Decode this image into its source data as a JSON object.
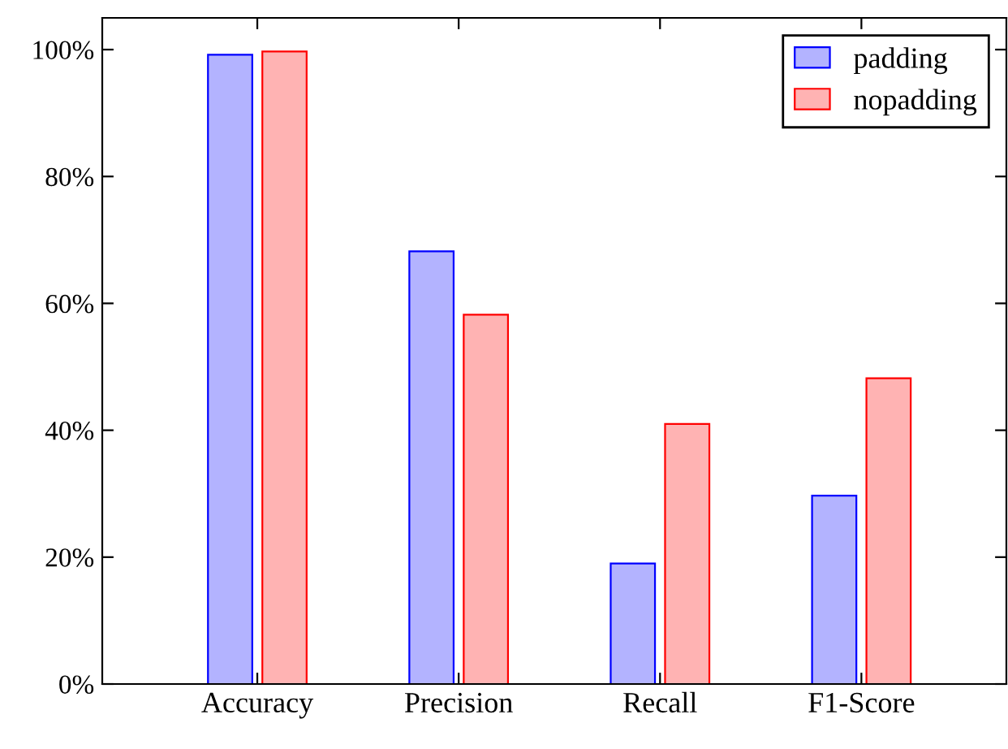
{
  "chart_data": {
    "type": "bar",
    "categories": [
      "Accuracy",
      "Precision",
      "Recall",
      "F1-Score"
    ],
    "series": [
      {
        "name": "padding",
        "color": "#b3b3ff",
        "values": [
          99.2,
          68.2,
          19.0,
          29.7
        ]
      },
      {
        "name": "nopadding",
        "color": "#ffb3b3",
        "values": [
          99.7,
          58.2,
          41.0,
          48.2
        ]
      }
    ],
    "ylim": [
      0,
      105
    ],
    "yticks": [
      {
        "value": 0,
        "label": "0%"
      },
      {
        "value": 20,
        "label": "20%"
      },
      {
        "value": 40,
        "label": "40%"
      },
      {
        "value": 60,
        "label": "60%"
      },
      {
        "value": 80,
        "label": "80%"
      },
      {
        "value": 100,
        "label": "100%"
      }
    ],
    "grid": false,
    "legend": "top right"
  }
}
